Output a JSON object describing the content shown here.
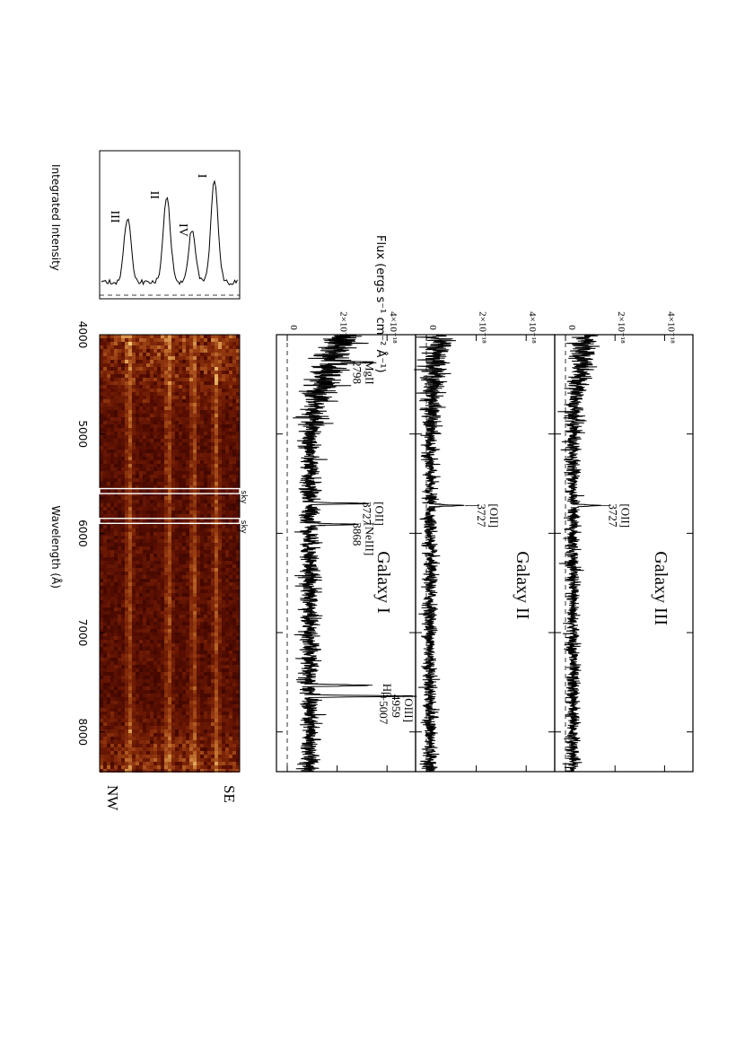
{
  "chart_data": [
    {
      "type": "line",
      "name_panel": "spectrum-galaxy-III",
      "label": "Galaxy III",
      "xlim": [
        4000,
        8400
      ],
      "ylim": [
        0,
        5e-18
      ],
      "x_ticks": [
        "4000",
        "5000",
        "6000",
        "7000",
        "8000"
      ],
      "y_ticks": [
        "0",
        "2×10⁻¹⁸",
        "4×10⁻¹⁸"
      ],
      "zero_line_dashed": true,
      "lines": [
        {
          "label": "[OII]",
          "label2": "3727",
          "x": 5720,
          "peak": 1.1e-18
        }
      ],
      "noise": {
        "level": 3e-19,
        "blue_excess": 6e-19,
        "sigma": 1.4e-19
      }
    },
    {
      "type": "line",
      "name_panel": "spectrum-galaxy-II",
      "label": "Galaxy II",
      "xlim": [
        4000,
        8400
      ],
      "ylim": [
        0,
        5e-18
      ],
      "x_ticks": [
        "4000",
        "5000",
        "6000",
        "7000",
        "8000"
      ],
      "y_ticks": [
        "0",
        "2×10⁻¹⁸",
        "4×10⁻¹⁸"
      ],
      "zero_line_dashed": true,
      "lines": [
        {
          "label": "[OII]",
          "label2": "3727",
          "x": 5720,
          "peak": 1.4e-18
        }
      ],
      "noise": {
        "level": 1.5e-19,
        "blue_excess": 4e-19,
        "sigma": 1.4e-19
      }
    },
    {
      "type": "line",
      "name_panel": "spectrum-galaxy-I",
      "label": "Galaxy I",
      "xlim": [
        4000,
        8400
      ],
      "ylim": [
        0,
        5e-18
      ],
      "x_ticks": [
        "4000",
        "5000",
        "6000",
        "7000",
        "8000"
      ],
      "y_ticks": [
        "0",
        "2×10⁻¹⁸",
        "4×10⁻¹⁸"
      ],
      "zero_line_dashed": true,
      "lines": [
        {
          "label": "MgII",
          "label2": "2798",
          "x": 4280,
          "peak": 2e-18
        },
        {
          "label": "[OII]",
          "label2": "3727",
          "x": 5700,
          "peak": 2.4e-18
        },
        {
          "label": "[NeIII]",
          "label2": "3868",
          "x": 5910,
          "peak": 2e-18
        },
        {
          "label": "Hβ",
          "label2": "",
          "x": 7530,
          "peak": 2.7e-18
        },
        {
          "label": "[OIII]",
          "label2": "4959",
          "label3": "+5007",
          "x": 7640,
          "peak": 4.1e-18
        }
      ],
      "noise": {
        "level": 9e-19,
        "blue_excess": 1.4e-18,
        "sigma": 2e-19
      }
    },
    {
      "type": "heatmap",
      "name_panel": "2d-spectrum",
      "xlim": [
        4000,
        8400
      ],
      "x_ticks": [
        "4000",
        "5000",
        "6000",
        "7000",
        "8000"
      ],
      "xlabel": "Wavelength (Å)",
      "side_labels": [
        "NW",
        "SE"
      ],
      "sky_masks": [
        {
          "label": "sky",
          "from": 5550,
          "to": 5600
        },
        {
          "label": "sky",
          "from": 5850,
          "to": 5900
        }
      ],
      "traces": [
        {
          "name": "I",
          "position": 0.18
        },
        {
          "name": "IV",
          "position": 0.34
        },
        {
          "name": "II",
          "position": 0.52
        },
        {
          "name": "III",
          "position": 0.8
        }
      ]
    },
    {
      "type": "line",
      "name_panel": "integrated-intensity",
      "xlabel": "Integrated Intensity",
      "peaks": [
        {
          "label": "I",
          "position": 0.18,
          "height": 0.78
        },
        {
          "label": "IV",
          "position": 0.34,
          "height": 0.4
        },
        {
          "label": "II",
          "position": 0.52,
          "height": 0.65
        },
        {
          "label": "III",
          "position": 0.8,
          "height": 0.5
        }
      ]
    }
  ],
  "axis_titles": {
    "flux": "Flux (ergs s⁻¹ cm⁻² Å⁻¹)",
    "wavelength": "Wavelength (Å)",
    "intensity": "Integrated Intensity"
  },
  "colors": {
    "heatmap_low": "#2a0500",
    "heatmap_high": "#ffe08a",
    "ink": "#000000"
  }
}
